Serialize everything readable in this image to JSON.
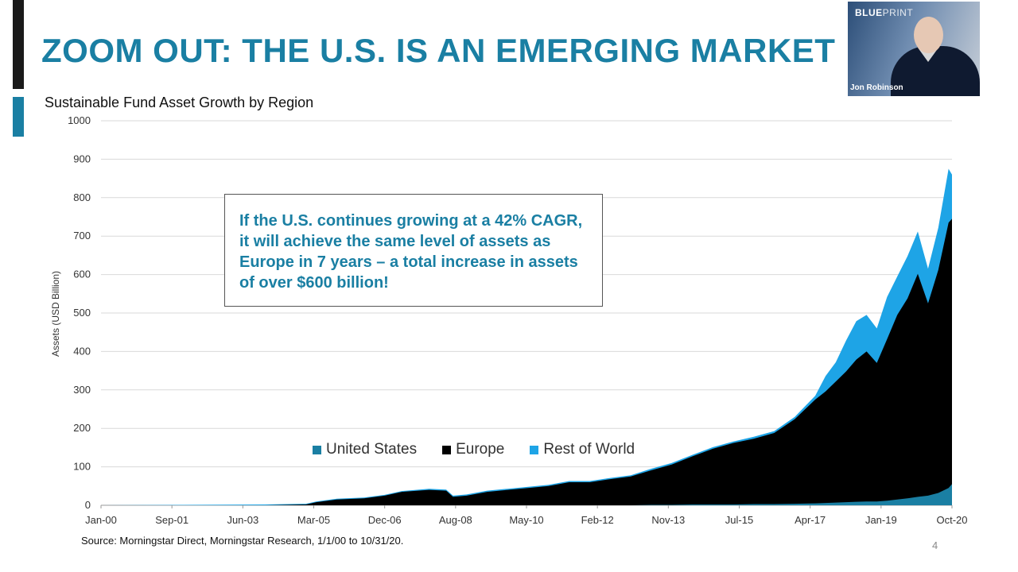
{
  "slide": {
    "title": "ZOOM OUT: THE U.S. IS AN EMERGING MARKET",
    "source": "Source: Morningstar Direct, Morningstar Research, 1/1/00 to 10/31/20.",
    "page_number": "4"
  },
  "webcam": {
    "brand_bold": "BLUE",
    "brand_light": "PRINT",
    "presenter_name": "Jon Robinson"
  },
  "callout": {
    "text": "If the U.S. continues growing at a 42% CAGR, it will achieve the same level of assets as Europe in 7 years – a total increase in assets of over $600 billion!"
  },
  "colors": {
    "accent": "#1a7fa3",
    "united_states": "#1a7fa3",
    "europe": "#000000",
    "rest_of_world": "#1ea4e6"
  },
  "chart_data": {
    "type": "area",
    "stacked": true,
    "title": "Sustainable Fund Asset Growth by Region",
    "xlabel": "",
    "ylabel": "Assets (USD Billion)",
    "ylim": [
      0,
      1000
    ],
    "yticks": [
      0,
      100,
      200,
      300,
      400,
      500,
      600,
      700,
      800,
      900,
      1000
    ],
    "xticks": [
      "Jan-00",
      "Sep-01",
      "Jun-03",
      "Mar-05",
      "Dec-06",
      "Aug-08",
      "May-10",
      "Feb-12",
      "Nov-13",
      "Jul-15",
      "Apr-17",
      "Jan-19",
      "Oct-20"
    ],
    "x_range": [
      "2000-01",
      "2020-10"
    ],
    "grid": true,
    "legend_position": "bottom-center",
    "x": [
      "2000-01",
      "2004-01",
      "2005-01",
      "2005-04",
      "2005-10",
      "2006-06",
      "2006-12",
      "2007-05",
      "2008-01",
      "2008-06",
      "2008-08",
      "2008-12",
      "2009-06",
      "2009-12",
      "2010-06",
      "2010-12",
      "2011-06",
      "2011-12",
      "2012-06",
      "2012-12",
      "2013-06",
      "2013-12",
      "2014-06",
      "2014-12",
      "2015-06",
      "2015-12",
      "2016-06",
      "2016-12",
      "2017-06",
      "2017-09",
      "2017-12",
      "2018-03",
      "2018-06",
      "2018-09",
      "2018-12",
      "2019-03",
      "2019-06",
      "2019-09",
      "2019-12",
      "2020-03",
      "2020-06",
      "2020-09",
      "2020-10"
    ],
    "series": [
      {
        "name": "United States",
        "values": [
          0,
          0,
          0,
          0,
          0,
          0,
          0,
          0,
          0,
          0,
          0,
          0,
          0,
          0,
          0,
          0,
          0,
          0,
          0,
          0,
          1,
          1,
          2,
          2,
          2,
          3,
          3,
          4,
          5,
          6,
          7,
          8,
          9,
          10,
          10,
          12,
          15,
          18,
          22,
          25,
          32,
          45,
          55
        ]
      },
      {
        "name": "Europe",
        "values": [
          0,
          0,
          2,
          8,
          15,
          18,
          25,
          35,
          40,
          38,
          22,
          25,
          35,
          40,
          45,
          50,
          60,
          60,
          68,
          75,
          90,
          105,
          125,
          145,
          160,
          170,
          185,
          220,
          270,
          290,
          315,
          340,
          370,
          390,
          360,
          420,
          480,
          520,
          580,
          500,
          580,
          690,
          690
        ]
      },
      {
        "name": "Rest of World",
        "values": [
          0,
          2,
          2,
          2,
          2,
          2,
          2,
          2,
          3,
          3,
          3,
          3,
          3,
          3,
          3,
          3,
          3,
          3,
          3,
          3,
          4,
          4,
          4,
          4,
          4,
          5,
          5,
          6,
          10,
          40,
          50,
          80,
          100,
          95,
          90,
          110,
          100,
          110,
          110,
          90,
          110,
          140,
          115
        ]
      }
    ]
  }
}
